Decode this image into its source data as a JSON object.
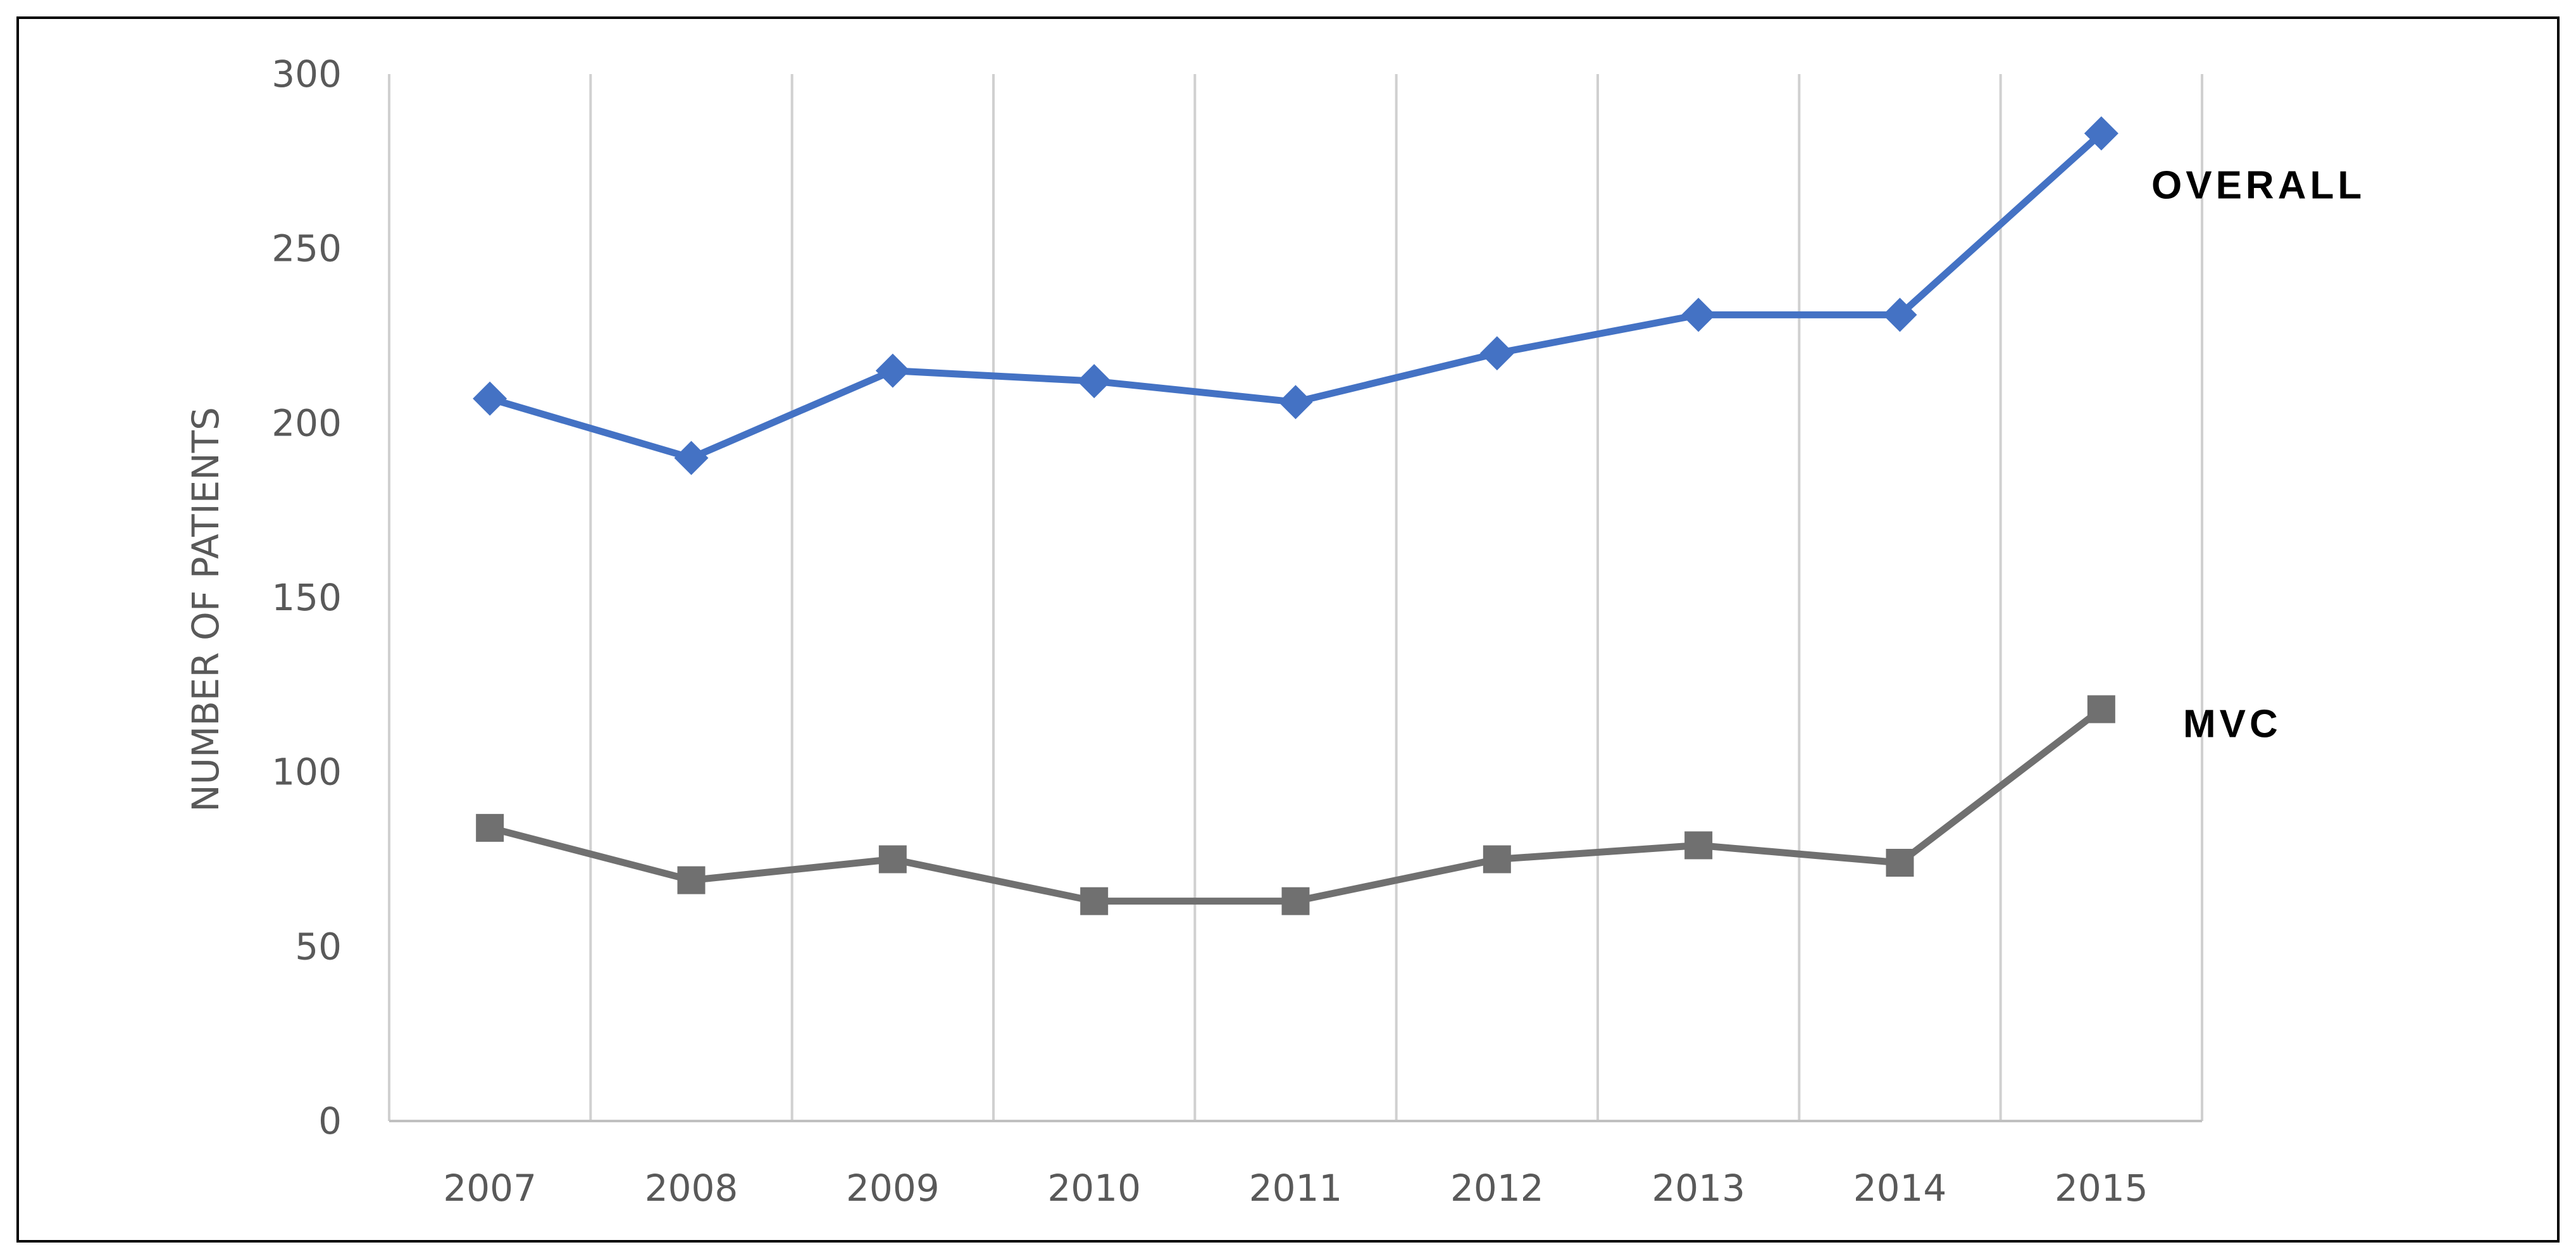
{
  "chart_data": {
    "type": "line",
    "title": "",
    "xlabel": "",
    "ylabel": "NUMBER OF PATIENTS",
    "categories": [
      "2007",
      "2008",
      "2009",
      "2010",
      "2011",
      "2012",
      "2013",
      "2014",
      "2015"
    ],
    "ylim": [
      0,
      300
    ],
    "yticks": [
      0,
      50,
      100,
      150,
      200,
      250,
      300
    ],
    "grid": "vertical",
    "legend": "none",
    "series": [
      {
        "name": "OVERALL",
        "values": [
          207,
          190,
          215,
          212,
          206,
          220,
          231,
          231,
          283
        ],
        "color": "#4472C4",
        "marker": "diamond"
      },
      {
        "name": "MVC",
        "values": [
          84,
          69,
          75,
          63,
          63,
          75,
          79,
          74,
          118
        ],
        "color": "#707070",
        "marker": "square"
      }
    ]
  }
}
